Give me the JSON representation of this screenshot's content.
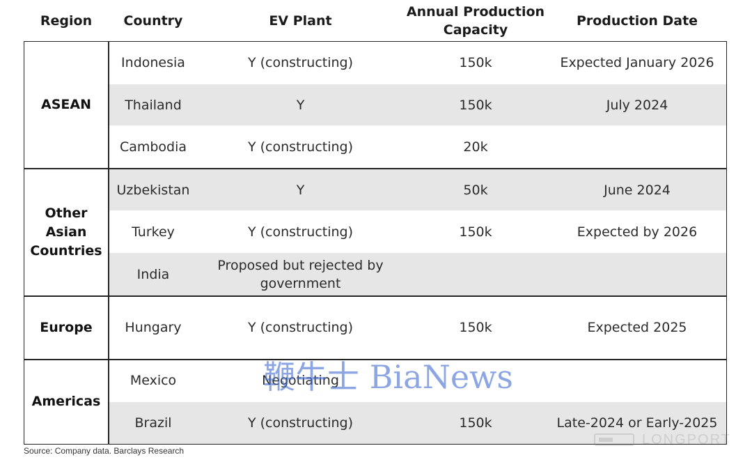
{
  "headers": {
    "region": "Region",
    "country": "Country",
    "ev_plant": "EV Plant",
    "capacity_line1": "Annual Production",
    "capacity_line2": "Capacity",
    "date": "Production Date"
  },
  "regions": {
    "asean": "ASEAN",
    "other_asian_l1": "Other",
    "other_asian_l2": "Asian",
    "other_asian_l3": "Countries",
    "europe": "Europe",
    "americas": "Americas"
  },
  "rows": [
    {
      "country": "Indonesia",
      "plant": "Y (constructing)",
      "capacity": "150k",
      "date": "Expected January 2026"
    },
    {
      "country": "Thailand",
      "plant": "Y",
      "capacity": "150k",
      "date": "July 2024"
    },
    {
      "country": "Cambodia",
      "plant": "Y (constructing)",
      "capacity": "20k",
      "date": ""
    },
    {
      "country": "Uzbekistan",
      "plant": "Y",
      "capacity": "50k",
      "date": "June 2024"
    },
    {
      "country": "Turkey",
      "plant": "Y (constructing)",
      "capacity": "150k",
      "date": "Expected by 2026"
    },
    {
      "country": "India",
      "plant_l1": "Proposed but rejected by",
      "plant_l2": "government",
      "capacity": "",
      "date": ""
    },
    {
      "country": "Hungary",
      "plant": "Y (constructing)",
      "capacity": "150k",
      "date": "Expected 2025"
    },
    {
      "country": "Mexico",
      "plant": "Negotiating",
      "capacity": "",
      "date": ""
    },
    {
      "country": "Brazil",
      "plant": "Y (constructing)",
      "capacity": "150k",
      "date": "Late-2024 or Early-2025"
    }
  ],
  "source": "Source: Company data. Barclays  Research",
  "watermark": "鞭牛士 BiaNews",
  "watermark2": "LONGPORT",
  "colors": {
    "row_shade": "#e6e6e6",
    "border": "#222222",
    "watermark": "#466ed2"
  }
}
